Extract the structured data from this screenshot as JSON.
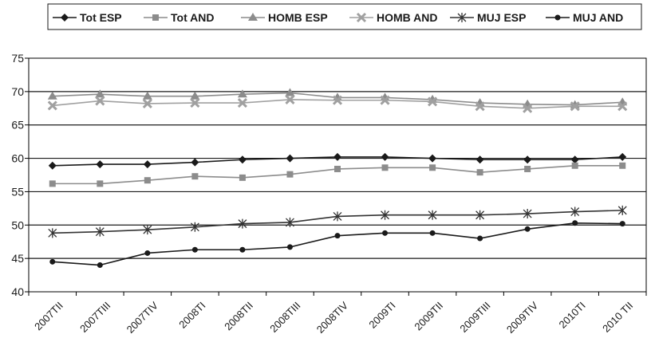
{
  "chart_data": {
    "type": "line",
    "categories": [
      "2007TII",
      "2007TIII",
      "2007TIV",
      "2008TI",
      "2008TII",
      "2008TIII",
      "2008TIV",
      "2009TI",
      "2009TII",
      "2009TIII",
      "2009TIV",
      "2010TI",
      "2010 TII"
    ],
    "ylim": [
      40,
      75
    ],
    "yticks": [
      40,
      45,
      50,
      55,
      60,
      65,
      70,
      75
    ],
    "grid": "horizontal",
    "legend_position": "top-right",
    "series": [
      {
        "name": "Tot ESP",
        "marker": "diamond",
        "color": "#1a1a1a",
        "values": [
          58.9,
          59.1,
          59.1,
          59.4,
          59.8,
          60.0,
          60.2,
          60.2,
          60.0,
          59.8,
          59.8,
          59.8,
          60.2
        ]
      },
      {
        "name": "Tot AND",
        "marker": "square",
        "color": "#8c8c8c",
        "values": [
          56.2,
          56.2,
          56.7,
          57.3,
          57.1,
          57.6,
          58.4,
          58.6,
          58.6,
          57.9,
          58.4,
          58.9,
          58.9
        ]
      },
      {
        "name": "HOMB ESP",
        "marker": "triangle",
        "color": "#8c8c8c",
        "values": [
          69.3,
          69.6,
          69.3,
          69.3,
          69.6,
          69.8,
          69.1,
          69.1,
          68.8,
          68.3,
          68.1,
          68.0,
          68.4
        ]
      },
      {
        "name": "HOMB AND",
        "marker": "x",
        "color": "#a0a0a0",
        "values": [
          67.9,
          68.6,
          68.2,
          68.3,
          68.3,
          68.8,
          68.7,
          68.7,
          68.5,
          67.8,
          67.5,
          67.8,
          67.8
        ]
      },
      {
        "name": "MUJ ESP",
        "marker": "asterisk",
        "color": "#333333",
        "values": [
          48.8,
          49.0,
          49.3,
          49.7,
          50.2,
          50.4,
          51.3,
          51.5,
          51.5,
          51.5,
          51.7,
          52.0,
          52.2
        ]
      },
      {
        "name": "MUJ AND",
        "marker": "circle",
        "color": "#1a1a1a",
        "values": [
          44.5,
          44.0,
          45.8,
          46.3,
          46.3,
          46.7,
          48.4,
          48.8,
          48.8,
          48.0,
          49.4,
          50.3,
          50.2
        ]
      }
    ]
  }
}
